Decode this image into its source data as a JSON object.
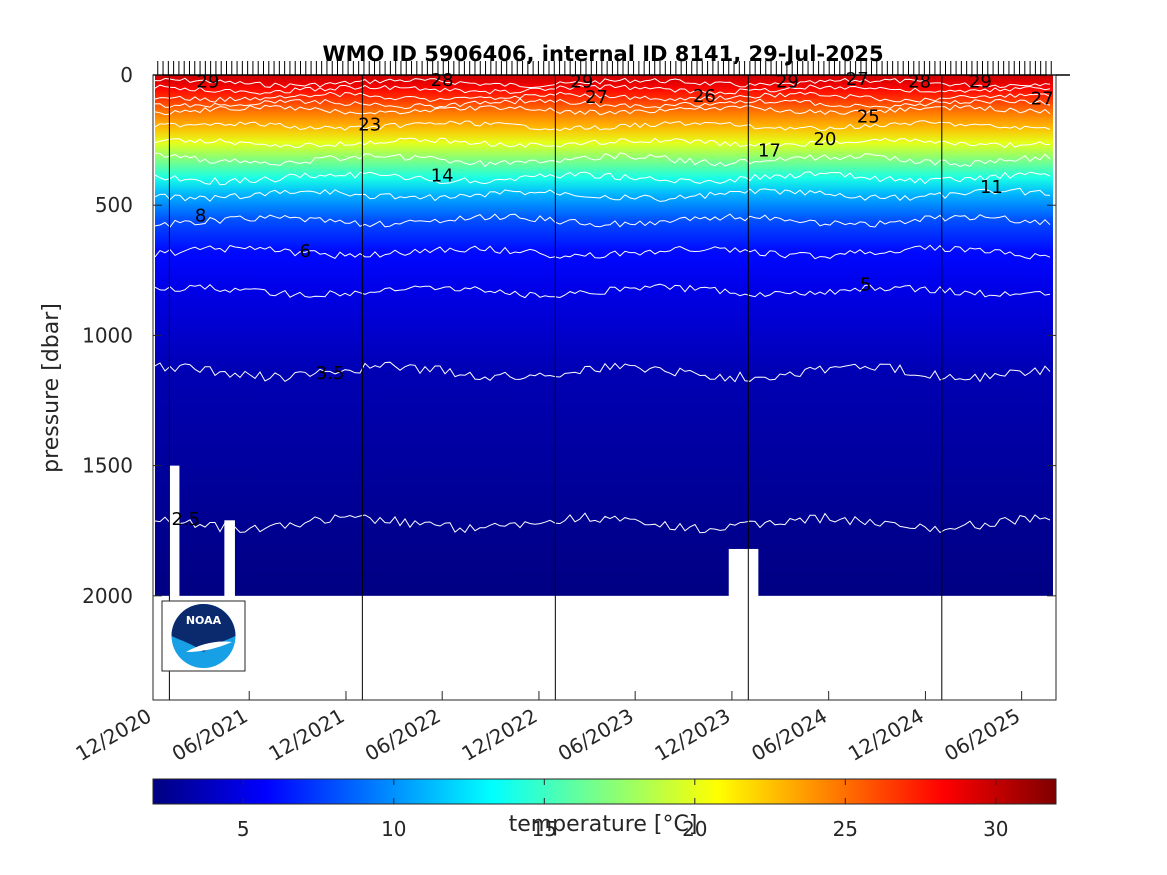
{
  "chart_data": {
    "type": "heatmap",
    "title": "WMO ID 5906406, internal ID 8141, 29-Jul-2025",
    "ylabel": "pressure [dbar]",
    "ylim": [
      0,
      2400
    ],
    "y_reversed": true,
    "y_ticks": [
      0,
      500,
      1000,
      1500,
      2000
    ],
    "x_start": "2020-12-01",
    "x_end": "2025-08-05",
    "x_ticks": [
      {
        "date": "2020-12-01",
        "label": "12/2020"
      },
      {
        "date": "2021-06-01",
        "label": "06/2021"
      },
      {
        "date": "2021-12-01",
        "label": "12/2021"
      },
      {
        "date": "2022-06-01",
        "label": "06/2022"
      },
      {
        "date": "2022-12-01",
        "label": "12/2022"
      },
      {
        "date": "2023-06-01",
        "label": "06/2023"
      },
      {
        "date": "2023-12-01",
        "label": "12/2023"
      },
      {
        "date": "2024-06-01",
        "label": "06/2024"
      },
      {
        "date": "2024-12-01",
        "label": "12/2024"
      },
      {
        "date": "2025-06-01",
        "label": "06/2025"
      }
    ],
    "year_lines": [
      "2021-01-01",
      "2022-01-01",
      "2023-01-01",
      "2024-01-01",
      "2025-01-01"
    ],
    "profiles_end_depth": 2000,
    "colorbar": {
      "label": "temperature [°C]",
      "range": [
        2,
        32
      ],
      "ticks": [
        5,
        10,
        15,
        20,
        25,
        30
      ],
      "colormap": "jet"
    },
    "contour_levels": [
      29,
      28,
      27,
      26,
      25,
      23,
      20,
      17,
      14,
      11,
      8,
      6,
      5,
      3.5,
      2.5
    ],
    "isotherm_depths": [
      {
        "temp": 29,
        "depth": 30
      },
      {
        "temp": 28,
        "depth": 55
      },
      {
        "temp": 27,
        "depth": 85
      },
      {
        "temp": 26,
        "depth": 110
      },
      {
        "temp": 25,
        "depth": 135
      },
      {
        "temp": 23,
        "depth": 195
      },
      {
        "temp": 20,
        "depth": 260
      },
      {
        "temp": 17,
        "depth": 325
      },
      {
        "temp": 14,
        "depth": 395
      },
      {
        "temp": 11,
        "depth": 460
      },
      {
        "temp": 8,
        "depth": 560
      },
      {
        "temp": 6,
        "depth": 680
      },
      {
        "temp": 5,
        "depth": 830
      },
      {
        "temp": 3.5,
        "depth": 1140
      },
      {
        "temp": 2.5,
        "depth": 1720
      }
    ],
    "contour_labels": [
      {
        "text": "29",
        "date": "2021-03-15",
        "depth": 25
      },
      {
        "text": "28",
        "date": "2022-06-01",
        "depth": 20
      },
      {
        "text": "23",
        "date": "2022-01-15",
        "depth": 190
      },
      {
        "text": "29",
        "date": "2023-02-20",
        "depth": 25
      },
      {
        "text": "27",
        "date": "2023-03-20",
        "depth": 85
      },
      {
        "text": "26",
        "date": "2023-10-10",
        "depth": 80
      },
      {
        "text": "14",
        "date": "2022-06-01",
        "depth": 385
      },
      {
        "text": "29",
        "date": "2024-03-15",
        "depth": 25
      },
      {
        "text": "27",
        "date": "2024-07-25",
        "depth": 15
      },
      {
        "text": "28",
        "date": "2024-11-20",
        "depth": 25
      },
      {
        "text": "29",
        "date": "2025-03-15",
        "depth": 25
      },
      {
        "text": "27",
        "date": "2025-07-10",
        "depth": 90
      },
      {
        "text": "25",
        "date": "2024-08-15",
        "depth": 160
      },
      {
        "text": "20",
        "date": "2024-05-25",
        "depth": 245
      },
      {
        "text": "17",
        "date": "2024-02-10",
        "depth": 290
      },
      {
        "text": "11",
        "date": "2025-04-05",
        "depth": 430
      },
      {
        "text": "8",
        "date": "2021-03-01",
        "depth": 540
      },
      {
        "text": "6",
        "date": "2021-09-15",
        "depth": 675
      },
      {
        "text": "5",
        "date": "2024-08-10",
        "depth": 805
      },
      {
        "text": "3.5",
        "date": "2021-11-01",
        "depth": 1145
      },
      {
        "text": "2.5",
        "date": "2021-02-01",
        "depth": 1705
      }
    ],
    "data_gaps": [
      {
        "start": "2021-01-01",
        "end": "2021-01-20",
        "from_depth": 1500,
        "to_depth": 2000
      },
      {
        "start": "2021-04-15",
        "end": "2021-05-05",
        "from_depth": 1710,
        "to_depth": 2000
      },
      {
        "start": "2023-11-25",
        "end": "2024-01-20",
        "from_depth": 1820,
        "to_depth": 2000
      }
    ]
  },
  "logo": {
    "text": "NOAA",
    "colors": {
      "navy": "#0b2a6e",
      "sky": "#17a0e6"
    }
  }
}
